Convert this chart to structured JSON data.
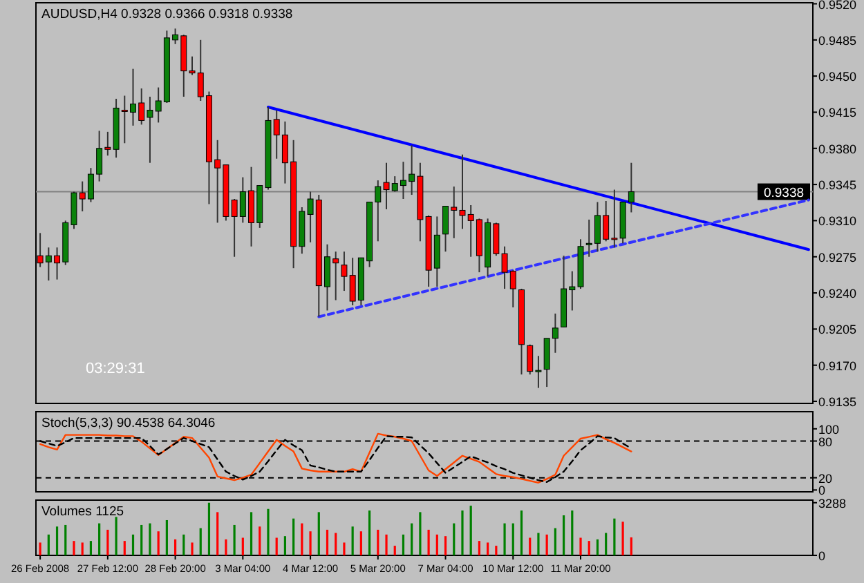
{
  "chart_data": [
    {
      "type": "candlestick",
      "title": "AUDUSD,H4  0.9328 0.9366 0.9318 0.9338",
      "annotations": [
        "03:29:31"
      ],
      "tick_labels": "y",
      "ohlc": [
        [
          0.9276,
          0.9298,
          0.9265,
          0.9269
        ],
        [
          0.927,
          0.9284,
          0.9252,
          0.9276
        ],
        [
          0.9276,
          0.9284,
          0.9253,
          0.9269
        ],
        [
          0.927,
          0.931,
          0.9267,
          0.9308
        ],
        [
          0.9306,
          0.9338,
          0.9302,
          0.9337
        ],
        [
          0.9337,
          0.9348,
          0.9319,
          0.9331
        ],
        [
          0.9331,
          0.9361,
          0.9328,
          0.9355
        ],
        [
          0.9355,
          0.9397,
          0.9348,
          0.938
        ],
        [
          0.9381,
          0.9396,
          0.9373,
          0.9379
        ],
        [
          0.9379,
          0.9428,
          0.9371,
          0.9419
        ],
        [
          0.9417,
          0.9431,
          0.9385,
          0.9416
        ],
        [
          0.9415,
          0.9457,
          0.9402,
          0.9423
        ],
        [
          0.9424,
          0.9438,
          0.9403,
          0.9407
        ],
        [
          0.941,
          0.943,
          0.9366,
          0.9417
        ],
        [
          0.9416,
          0.9439,
          0.9405,
          0.9426
        ],
        [
          0.9425,
          0.9494,
          0.9424,
          0.9487
        ],
        [
          0.9485,
          0.9496,
          0.9481,
          0.949
        ],
        [
          0.9489,
          0.949,
          0.943,
          0.9455
        ],
        [
          0.9455,
          0.9469,
          0.9451,
          0.9453
        ],
        [
          0.9453,
          0.9485,
          0.9426,
          0.943
        ],
        [
          0.9431,
          0.9435,
          0.9326,
          0.9367
        ],
        [
          0.9369,
          0.9388,
          0.9308,
          0.9361
        ],
        [
          0.9364,
          0.9364,
          0.931,
          0.9314
        ],
        [
          0.933,
          0.9331,
          0.9275,
          0.9314
        ],
        [
          0.9314,
          0.9352,
          0.9308,
          0.9338
        ],
        [
          0.9339,
          0.9362,
          0.9285,
          0.9308
        ],
        [
          0.9308,
          0.9344,
          0.9303,
          0.9344
        ],
        [
          0.9342,
          0.942,
          0.934,
          0.9407
        ],
        [
          0.9408,
          0.9417,
          0.937,
          0.9393
        ],
        [
          0.9393,
          0.9406,
          0.9346,
          0.9366
        ],
        [
          0.9367,
          0.9388,
          0.9264,
          0.9285
        ],
        [
          0.9285,
          0.9323,
          0.9278,
          0.9319
        ],
        [
          0.9316,
          0.9338,
          0.9289,
          0.9331
        ],
        [
          0.933,
          0.9335,
          0.9217,
          0.9247
        ],
        [
          0.9246,
          0.9287,
          0.9223,
          0.9275
        ],
        [
          0.9273,
          0.928,
          0.9233,
          0.9269
        ],
        [
          0.9267,
          0.928,
          0.9242,
          0.9256
        ],
        [
          0.9257,
          0.9274,
          0.9228,
          0.9232
        ],
        [
          0.9233,
          0.9274,
          0.9228,
          0.9274
        ],
        [
          0.9271,
          0.9328,
          0.9265,
          0.9328
        ],
        [
          0.9328,
          0.9349,
          0.929,
          0.9343
        ],
        [
          0.9347,
          0.9366,
          0.9321,
          0.934
        ],
        [
          0.9339,
          0.9353,
          0.9338,
          0.9346
        ],
        [
          0.9344,
          0.9367,
          0.9331,
          0.9349
        ],
        [
          0.9348,
          0.9383,
          0.9335,
          0.9355
        ],
        [
          0.9353,
          0.9366,
          0.929,
          0.9311
        ],
        [
          0.9314,
          0.9315,
          0.9246,
          0.9262
        ],
        [
          0.9264,
          0.9314,
          0.9246,
          0.9296
        ],
        [
          0.9297,
          0.9324,
          0.928,
          0.9324
        ],
        [
          0.9323,
          0.9343,
          0.9293,
          0.932
        ],
        [
          0.932,
          0.9374,
          0.9302,
          0.9315
        ],
        [
          0.9316,
          0.9325,
          0.9275,
          0.931
        ],
        [
          0.9311,
          0.9312,
          0.926,
          0.9276
        ],
        [
          0.9265,
          0.9312,
          0.9256,
          0.9308
        ],
        [
          0.9307,
          0.9308,
          0.9276,
          0.9278
        ],
        [
          0.9278,
          0.9285,
          0.9244,
          0.926
        ],
        [
          0.9261,
          0.9262,
          0.9226,
          0.9244
        ],
        [
          0.9243,
          0.9244,
          0.9161,
          0.919
        ],
        [
          0.9189,
          0.919,
          0.9161,
          0.9164
        ],
        [
          0.9164,
          0.9179,
          0.9148,
          0.9165
        ],
        [
          0.9166,
          0.9196,
          0.9149,
          0.9196
        ],
        [
          0.9196,
          0.922,
          0.9182,
          0.9206
        ],
        [
          0.9207,
          0.9276,
          0.9207,
          0.9244
        ],
        [
          0.9243,
          0.9261,
          0.9223,
          0.9246
        ],
        [
          0.9246,
          0.9292,
          0.9244,
          0.9285
        ],
        [
          0.9287,
          0.9311,
          0.9275,
          0.9288
        ],
        [
          0.9288,
          0.9328,
          0.928,
          0.9315
        ],
        [
          0.9315,
          0.9329,
          0.929,
          0.9292
        ],
        [
          0.9293,
          0.934,
          0.9284,
          0.9292
        ],
        [
          0.9293,
          0.9328,
          0.9288,
          0.9328
        ],
        [
          0.9328,
          0.9366,
          0.9318,
          0.9338
        ],
        null,
        null,
        null,
        null,
        null,
        null,
        null,
        null,
        null,
        null,
        null,
        null,
        null,
        null,
        null,
        null,
        null,
        null,
        null,
        null,
        null
      ],
      "colors": [
        "#ff0000",
        "#0a820a",
        "#ff0000",
        "#0a820a",
        "#0a820a",
        "#ff0000",
        "#0a820a",
        "#0a820a",
        "#ff0000",
        "#0a820a",
        "#ff0000",
        "#0a820a",
        "#ff0000",
        "#0a820a",
        "#0a820a",
        "#0a820a",
        "#0a820a",
        "#ff0000",
        "#ff0000",
        "#ff0000",
        "#ff0000",
        "#ff0000",
        "#ff0000",
        "#ff0000",
        "#0a820a",
        "#ff0000",
        "#0a820a",
        "#0a820a",
        "#ff0000",
        "#ff0000",
        "#ff0000",
        "#0a820a",
        "#0a820a",
        "#ff0000",
        "#0a820a",
        "#ff0000",
        "#ff0000",
        "#ff0000",
        "#0a820a",
        "#0a820a",
        "#0a820a",
        "#ff0000",
        "#0a820a",
        "#0a820a",
        "#0a820a",
        "#ff0000",
        "#ff0000",
        "#0a820a",
        "#0a820a",
        "#ff0000",
        "#ff0000",
        "#ff0000",
        "#ff0000",
        "#0a820a",
        "#ff0000",
        "#ff0000",
        "#ff0000",
        "#ff0000",
        "#ff0000",
        "#0a820a",
        "#0a820a",
        "#0a820a",
        "#0a820a",
        "#0a820a",
        "#0a820a",
        "#0a820a",
        "#0a820a",
        "#ff0000",
        "#ff0000",
        "#0a820a",
        "#0a820a",
        null,
        null,
        null,
        null,
        null,
        null,
        null,
        null,
        null,
        null,
        null,
        null,
        null,
        null,
        null,
        null,
        null,
        null,
        null,
        null,
        null
      ],
      "series": [
        {
          "type": "line",
          "color": "#0000ff",
          "line_style": "solid",
          "values": [
            null,
            null,
            null,
            null,
            null,
            null,
            null,
            null,
            null,
            null,
            null,
            null,
            null,
            null,
            null,
            null,
            null,
            null,
            null,
            null,
            null,
            null,
            null,
            null,
            null,
            null,
            null,
            0.942,
            null,
            null,
            null,
            null,
            null,
            null,
            null,
            null,
            null,
            null,
            null,
            null,
            null,
            null,
            null,
            null,
            null,
            null,
            null,
            null,
            null,
            null,
            null,
            null,
            null,
            null,
            null,
            null,
            null,
            null,
            null,
            null,
            null,
            null,
            null,
            null,
            null,
            null,
            null,
            null,
            null,
            null,
            null,
            null,
            null,
            null,
            null,
            null,
            null,
            null,
            null,
            null,
            null,
            null,
            null,
            null,
            null,
            null,
            null,
            null,
            null,
            null,
            null,
            0.9282
          ]
        },
        {
          "type": "line",
          "color": "#3333ff",
          "line_style": "dashed",
          "values": [
            null,
            null,
            null,
            null,
            null,
            null,
            null,
            null,
            null,
            null,
            null,
            null,
            null,
            null,
            null,
            null,
            null,
            null,
            null,
            null,
            null,
            null,
            null,
            null,
            null,
            null,
            null,
            null,
            null,
            null,
            null,
            null,
            null,
            0.9217,
            null,
            null,
            null,
            null,
            null,
            null,
            null,
            null,
            null,
            null,
            null,
            null,
            null,
            null,
            null,
            null,
            null,
            null,
            null,
            null,
            null,
            null,
            null,
            null,
            null,
            null,
            null,
            null,
            null,
            null,
            null,
            null,
            null,
            null,
            null,
            null,
            null,
            null,
            null,
            null,
            null,
            null,
            null,
            null,
            null,
            null,
            null,
            null,
            null,
            null,
            null,
            null,
            null,
            null,
            null,
            null,
            null,
            0.933
          ]
        }
      ],
      "ref_lines": [
        {
          "axis": "y",
          "value": 0.9338,
          "label": "0.9338",
          "color": "#808080"
        }
      ],
      "ylim": [
        0.9133,
        0.9521
      ],
      "yticks": [
        0.9135,
        {
          "value": 0.917,
          "label": "0.9170"
        },
        0.9205,
        {
          "value": 0.924,
          "label": "0.9240"
        },
        0.9275,
        {
          "value": 0.931,
          "label": "0.9310"
        },
        0.9345,
        {
          "value": 0.938,
          "label": "0.9380"
        },
        0.9415,
        {
          "value": 0.945,
          "label": "0.9450"
        },
        0.9485,
        {
          "value": 0.952,
          "label": "0.9520"
        }
      ]
    },
    {
      "type": "line",
      "title": "Stoch(5,3,3) 90.4538 64.3046",
      "tick_labels": "y",
      "ylim": [
        -3,
        128
      ],
      "yticks": [
        0,
        20,
        80,
        100
      ],
      "series": [
        {
          "color": "#ff4500",
          "line_style": "solid",
          "values": [
            75,
            70,
            66,
            90,
            90,
            90,
            90,
            90,
            89,
            89,
            88,
            88,
            79,
            68,
            57,
            67,
            77,
            87,
            85,
            69,
            53,
            22,
            19,
            16,
            20,
            25,
            44,
            63,
            82,
            72,
            63,
            35,
            32,
            30,
            30,
            30,
            30,
            34,
            30,
            61,
            92,
            89,
            87,
            84,
            80,
            56,
            32,
            23,
            34,
            45,
            56,
            51,
            46,
            36,
            26,
            23,
            21,
            18,
            15,
            12,
            18,
            25,
            56,
            70,
            84,
            87,
            90,
            83,
            77,
            70,
            63,
            null,
            null,
            null,
            null,
            null,
            null,
            null,
            null,
            null,
            null,
            null,
            null,
            null,
            null,
            null,
            null,
            null,
            null,
            null,
            null,
            null
          ]
        },
        {
          "color": "#000000",
          "line_style": "dashed",
          "values": [
            80,
            76,
            72,
            78,
            85,
            85,
            85,
            85,
            85,
            85,
            85,
            85,
            85,
            72,
            58,
            67,
            76,
            85,
            80,
            75,
            70,
            50,
            30,
            23,
            17,
            23,
            30,
            47,
            65,
            82,
            73,
            65,
            40,
            37,
            33,
            30,
            30,
            30,
            30,
            49,
            69,
            88,
            87,
            87,
            86,
            73,
            60,
            44,
            28,
            37,
            46,
            55,
            50,
            45,
            39,
            34,
            28,
            24,
            20,
            16,
            13,
            21,
            30,
            47,
            65,
            76,
            88,
            86,
            85,
            76,
            68,
            null,
            null,
            null,
            null,
            null,
            null,
            null,
            null,
            null,
            null,
            null,
            null,
            null,
            null,
            null,
            null,
            null,
            null,
            null,
            null,
            null
          ]
        }
      ],
      "ref_lines": [
        {
          "axis": "y",
          "value": 80,
          "color": "#000000",
          "line_style": "dashed"
        },
        {
          "axis": "y",
          "value": 20,
          "color": "#000000",
          "line_style": "dashed"
        }
      ]
    },
    {
      "type": "bar",
      "title": "Volumes 1125",
      "categories": [
        "26 Feb 2008",
        null,
        null,
        null,
        null,
        null,
        null,
        null,
        "27 Feb 12:00",
        null,
        null,
        null,
        null,
        null,
        null,
        null,
        "28 Feb 20:00",
        null,
        null,
        null,
        null,
        null,
        null,
        null,
        "3 Mar 04:00",
        null,
        null,
        null,
        null,
        null,
        null,
        null,
        "4 Mar 12:00",
        null,
        null,
        null,
        null,
        null,
        null,
        null,
        "5 Mar 20:00",
        null,
        null,
        null,
        null,
        null,
        null,
        null,
        "7 Mar 04:00",
        null,
        null,
        null,
        null,
        null,
        null,
        null,
        "10 Mar 12:00",
        null,
        null,
        null,
        null,
        null,
        null,
        null,
        "11 Mar 20:00",
        null,
        null,
        null,
        null,
        null,
        null,
        null,
        null,
        null,
        null,
        null,
        null,
        null,
        null,
        null,
        null,
        null,
        null,
        null,
        null,
        null,
        null,
        null,
        null,
        null,
        null,
        null
      ],
      "values": [
        800,
        1300,
        1800,
        1900,
        900,
        800,
        900,
        2000,
        1600,
        2400,
        900,
        1300,
        1900,
        2000,
        1500,
        2200,
        1000,
        1300,
        800,
        1700,
        3288,
        2700,
        1000,
        1900,
        1100,
        2700,
        1800,
        2900,
        1100,
        1200,
        2300,
        2000,
        1500,
        2700,
        1600,
        1400,
        800,
        1800,
        1500,
        2800,
        1600,
        1300,
        600,
        1300,
        2000,
        2700,
        1600,
        1300,
        1200,
        2000,
        2800,
        3100,
        900,
        800,
        600,
        2000,
        2000,
        2800,
        1100,
        1400,
        1300,
        1700,
        2500,
        2800,
        1100,
        900,
        1000,
        1400,
        2300,
        2100,
        1125,
        null,
        null,
        null,
        null,
        null,
        null,
        null,
        null,
        null,
        null,
        null,
        null,
        null,
        null,
        null,
        null,
        null,
        null,
        null,
        null,
        null
      ],
      "colors": [
        "#ff0000",
        "#008000",
        "#008000",
        "#008000",
        "#ff0000",
        "#ff0000",
        "#008000",
        "#008000",
        "#ff0000",
        "#008000",
        "#ff0000",
        "#008000",
        "#008000",
        "#008000",
        "#ff0000",
        "#008000",
        "#ff0000",
        "#008000",
        "#ff0000",
        "#008000",
        "#008000",
        "#ff0000",
        "#ff0000",
        "#008000",
        "#ff0000",
        "#008000",
        "#ff0000",
        "#008000",
        "#ff0000",
        "#008000",
        "#008000",
        "#ff0000",
        "#ff0000",
        "#008000",
        "#ff0000",
        "#ff0000",
        "#ff0000",
        "#008000",
        "#ff0000",
        "#008000",
        "#ff0000",
        "#ff0000",
        "#ff0000",
        "#008000",
        "#008000",
        "#008000",
        "#ff0000",
        "#ff0000",
        "#ff0000",
        "#008000",
        "#008000",
        "#008000",
        "#ff0000",
        "#ff0000",
        "#ff0000",
        "#008000",
        "#008000",
        "#008000",
        "#ff0000",
        "#008000",
        "#ff0000",
        "#008000",
        "#008000",
        "#008000",
        "#ff0000",
        "#ff0000",
        "#008000",
        "#008000",
        "#008000",
        "#ff0000",
        "#ff0000",
        null,
        null,
        null,
        null,
        null,
        null,
        null,
        null,
        null,
        null,
        null,
        null,
        null,
        null,
        null,
        null,
        null,
        null,
        null,
        null,
        null
      ],
      "ylim": [
        0,
        3450
      ],
      "yticks": [
        0,
        3288
      ]
    }
  ]
}
